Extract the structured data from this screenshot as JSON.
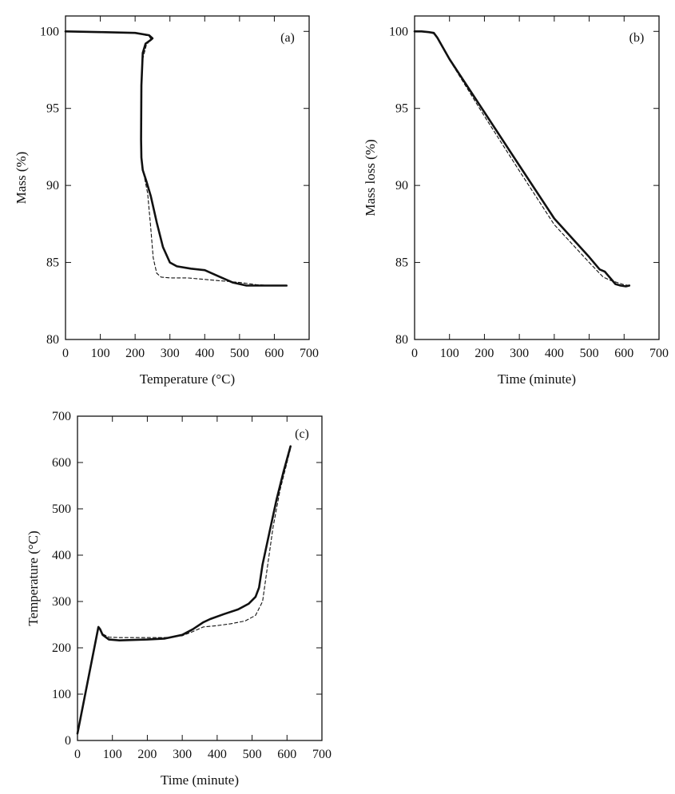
{
  "chart_data": [
    {
      "type": "line",
      "panel_label": "(a)",
      "xlabel": "Temperature (°C)",
      "ylabel": "Mass (%)",
      "xlim": [
        0,
        700
      ],
      "ylim": [
        80,
        101
      ],
      "xticks": [
        0,
        100,
        200,
        300,
        400,
        500,
        600,
        700
      ],
      "yticks": [
        80,
        85,
        90,
        95,
        100
      ],
      "grid": false,
      "series": [
        {
          "style": "solid-thick",
          "x": [
            0,
            100,
            200,
            240,
            250,
            245,
            230,
            222,
            218,
            217,
            218,
            222,
            232,
            245,
            262,
            280,
            300,
            320,
            360,
            400,
            440,
            480,
            520,
            560,
            600,
            635
          ],
          "y": [
            100.0,
            99.95,
            99.9,
            99.75,
            99.55,
            99.45,
            99.2,
            98.6,
            96.5,
            93.0,
            91.8,
            91.0,
            90.3,
            89.3,
            87.6,
            86.0,
            85.0,
            84.75,
            84.6,
            84.5,
            84.1,
            83.7,
            83.5,
            83.5,
            83.5,
            83.5
          ]
        },
        {
          "style": "dashed",
          "x": [
            0,
            200,
            240,
            245,
            232,
            222,
            218,
            217,
            218,
            222,
            228,
            236,
            244,
            252,
            262,
            275,
            300,
            350,
            400,
            450,
            500,
            550,
            600,
            635
          ],
          "y": [
            100.0,
            99.9,
            99.7,
            99.5,
            99.1,
            98.2,
            96.0,
            93.0,
            91.7,
            91.0,
            90.4,
            89.5,
            87.5,
            85.3,
            84.3,
            84.05,
            84.0,
            84.0,
            83.9,
            83.8,
            83.7,
            83.55,
            83.5,
            83.5
          ]
        }
      ]
    },
    {
      "type": "line",
      "panel_label": "(b)",
      "xlabel": "Time (minute)",
      "ylabel": "Mass loss (%)",
      "xlim": [
        0,
        700
      ],
      "ylim": [
        80,
        101
      ],
      "xticks": [
        0,
        100,
        200,
        300,
        400,
        500,
        600,
        700
      ],
      "yticks": [
        80,
        85,
        90,
        95,
        100
      ],
      "grid": false,
      "series": [
        {
          "style": "solid-thick",
          "x": [
            0,
            20,
            40,
            55,
            65,
            100,
            200,
            300,
            400,
            500,
            530,
            545,
            560,
            575,
            590,
            605,
            615
          ],
          "y": [
            100.0,
            100.0,
            99.95,
            99.9,
            99.6,
            98.2,
            94.75,
            91.3,
            87.85,
            85.35,
            84.55,
            84.4,
            84.0,
            83.6,
            83.5,
            83.45,
            83.5
          ]
        },
        {
          "style": "dashed",
          "x": [
            0,
            40,
            55,
            65,
            100,
            200,
            300,
            400,
            500,
            540,
            560,
            580,
            600,
            615
          ],
          "y": [
            100.0,
            99.95,
            99.85,
            99.55,
            98.15,
            94.5,
            90.95,
            87.45,
            85.0,
            84.05,
            83.85,
            83.7,
            83.55,
            83.5
          ]
        }
      ]
    },
    {
      "type": "line",
      "panel_label": "(c)",
      "xlabel": "Time (minute)",
      "ylabel": "Temperature (°C)",
      "xlim": [
        0,
        700
      ],
      "ylim": [
        0,
        700
      ],
      "xticks": [
        0,
        100,
        200,
        300,
        400,
        500,
        600,
        700
      ],
      "yticks": [
        0,
        100,
        200,
        300,
        400,
        500,
        600,
        700
      ],
      "grid": false,
      "series": [
        {
          "style": "solid-thick",
          "x": [
            0,
            60,
            65,
            72,
            90,
            120,
            200,
            250,
            300,
            330,
            360,
            380,
            420,
            460,
            490,
            510,
            520,
            530,
            550,
            570,
            590,
            610
          ],
          "y": [
            15,
            245,
            240,
            228,
            218,
            216,
            218,
            220,
            228,
            240,
            255,
            262,
            273,
            283,
            295,
            310,
            330,
            380,
            450,
            520,
            580,
            635
          ]
        },
        {
          "style": "dashed",
          "x": [
            0,
            60,
            65,
            72,
            90,
            120,
            200,
            250,
            300,
            330,
            360,
            400,
            440,
            480,
            510,
            530,
            545,
            560,
            580,
            600,
            610
          ],
          "y": [
            15,
            245,
            240,
            230,
            223,
            222,
            222,
            222,
            226,
            235,
            245,
            248,
            252,
            258,
            270,
            300,
            380,
            460,
            540,
            600,
            630
          ]
        }
      ]
    }
  ]
}
